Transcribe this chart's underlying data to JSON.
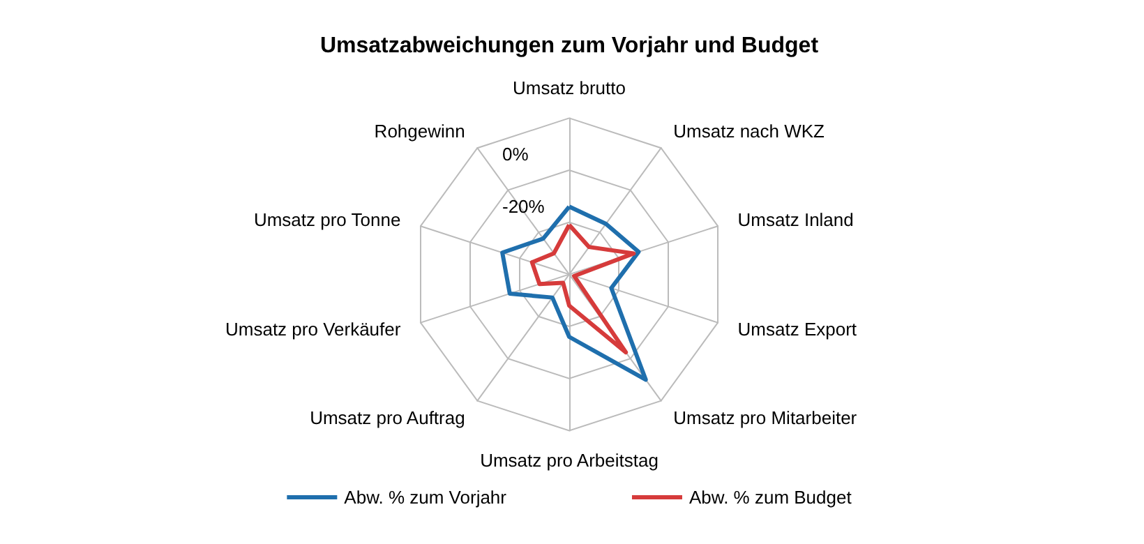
{
  "chart_data": {
    "type": "radar",
    "title": "Umsatzabweichungen zum Vorjahr und Budget",
    "categories": [
      "Umsatz brutto",
      "Umsatz nach WKZ",
      "Umsatz Inland",
      "Umsatz Export",
      "Umsatz pro Mitarbeiter",
      "Umsatz pro Arbeitstag",
      "Umsatz pro Auftrag",
      "Umsatz pro Verkäufer",
      "Umsatz pro Tonne",
      "Rohgewinn"
    ],
    "series": [
      {
        "name": "Abw. % zum Vorjahr",
        "color": "#1f6fad",
        "values": [
          -14,
          -16,
          -12,
          -23,
          10,
          -16,
          -29,
          -16,
          -13,
          -23
        ]
      },
      {
        "name": "Abw. % zum Budget",
        "color": "#d63b3b",
        "values": [
          -21,
          -27,
          -14,
          -38,
          -3,
          -28,
          -36,
          -28,
          -25,
          -30
        ]
      }
    ],
    "ylim": [
      -40,
      20
    ],
    "yticks": [
      {
        "value": -20,
        "label": "-20%"
      },
      {
        "value": 0,
        "label": "0%"
      }
    ],
    "legend": "bottom",
    "marker": "none",
    "line_style": "solid"
  }
}
